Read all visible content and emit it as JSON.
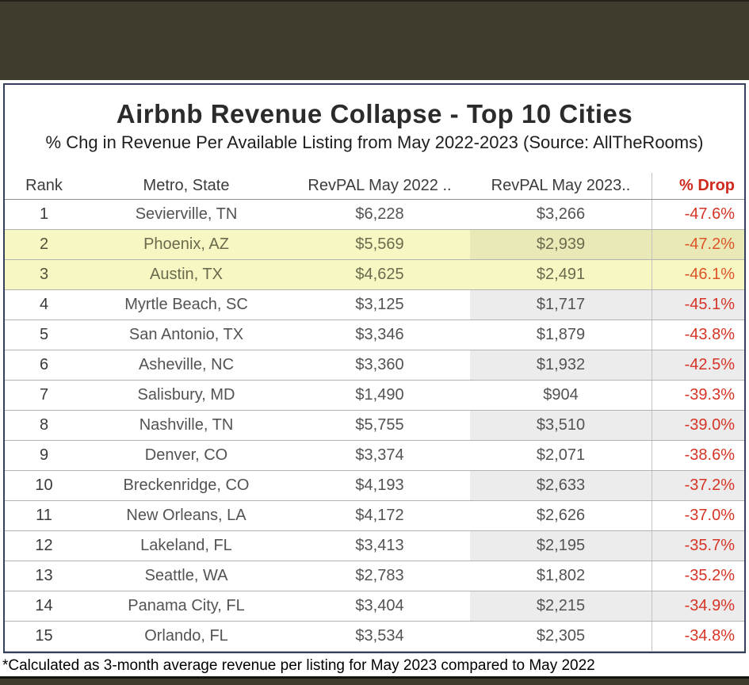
{
  "page": {
    "title": "Airbnb Revenue Collapse - Top 10 Cities",
    "subtitle": "% Chg in Revenue Per Available Listing from May 2022-2023 (Source: AllTheRooms)",
    "footnote": "*Calculated as 3-month average revenue per listing for May 2023 compared to May 2022"
  },
  "colors": {
    "frame_dark": "#3f3c2d",
    "card_border": "#35415c",
    "highlight_yellow": "#f7f7c4",
    "band_gray": "#ececec",
    "accent_red": "#d63426"
  },
  "table": {
    "columns": [
      "Rank",
      "Metro, State",
      "RevPAL May 2022 ..",
      "RevPAL May 2023..",
      "% Drop"
    ],
    "rows": [
      {
        "rank": "1",
        "metro": "Sevierville, TN",
        "rev2022": "$6,228",
        "rev2023": "$3,266",
        "drop": "-47.6%",
        "highlight": false
      },
      {
        "rank": "2",
        "metro": "Phoenix, AZ",
        "rev2022": "$5,569",
        "rev2023": "$2,939",
        "drop": "-47.2%",
        "highlight": true
      },
      {
        "rank": "3",
        "metro": "Austin, TX",
        "rev2022": "$4,625",
        "rev2023": "$2,491",
        "drop": "-46.1%",
        "highlight": true
      },
      {
        "rank": "4",
        "metro": "Myrtle Beach, SC",
        "rev2022": "$3,125",
        "rev2023": "$1,717",
        "drop": "-45.1%",
        "highlight": false
      },
      {
        "rank": "5",
        "metro": "San Antonio, TX",
        "rev2022": "$3,346",
        "rev2023": "$1,879",
        "drop": "-43.8%",
        "highlight": false
      },
      {
        "rank": "6",
        "metro": "Asheville, NC",
        "rev2022": "$3,360",
        "rev2023": "$1,932",
        "drop": "-42.5%",
        "highlight": false
      },
      {
        "rank": "7",
        "metro": "Salisbury, MD",
        "rev2022": "$1,490",
        "rev2023": "$904",
        "drop": "-39.3%",
        "highlight": false
      },
      {
        "rank": "8",
        "metro": "Nashville, TN",
        "rev2022": "$5,755",
        "rev2023": "$3,510",
        "drop": "-39.0%",
        "highlight": false
      },
      {
        "rank": "9",
        "metro": "Denver, CO",
        "rev2022": "$3,374",
        "rev2023": "$2,071",
        "drop": "-38.6%",
        "highlight": false
      },
      {
        "rank": "10",
        "metro": "Breckenridge, CO",
        "rev2022": "$4,193",
        "rev2023": "$2,633",
        "drop": "-37.2%",
        "highlight": false
      },
      {
        "rank": "11",
        "metro": "New Orleans, LA",
        "rev2022": "$4,172",
        "rev2023": "$2,626",
        "drop": "-37.0%",
        "highlight": false
      },
      {
        "rank": "12",
        "metro": "Lakeland, FL",
        "rev2022": "$3,413",
        "rev2023": "$2,195",
        "drop": "-35.7%",
        "highlight": false
      },
      {
        "rank": "13",
        "metro": "Seattle, WA",
        "rev2022": "$2,783",
        "rev2023": "$1,802",
        "drop": "-35.2%",
        "highlight": false
      },
      {
        "rank": "14",
        "metro": "Panama City, FL",
        "rev2022": "$3,404",
        "rev2023": "$2,215",
        "drop": "-34.9%",
        "highlight": false
      },
      {
        "rank": "15",
        "metro": "Orlando, FL",
        "rev2022": "$3,534",
        "rev2023": "$2,305",
        "drop": "-34.8%",
        "highlight": false
      }
    ]
  },
  "chart_data": {
    "type": "table",
    "title": "Airbnb Revenue Collapse - Top 10 Cities",
    "subtitle": "% Chg in Revenue Per Available Listing from May 2022-2023 (Source: AllTheRooms)",
    "footnote": "*Calculated as 3-month average revenue per listing for May 2023 compared to May 2022",
    "columns": [
      "Rank",
      "Metro, State",
      "RevPAL May 2022 ..",
      "RevPAL May 2023..",
      "% Drop"
    ],
    "categories": [
      "Sevierville, TN",
      "Phoenix, AZ",
      "Austin, TX",
      "Myrtle Beach, SC",
      "San Antonio, TX",
      "Asheville, NC",
      "Salisbury, MD",
      "Nashville, TN",
      "Denver, CO",
      "Breckenridge, CO",
      "New Orleans, LA",
      "Lakeland, FL",
      "Seattle, WA",
      "Panama City, FL",
      "Orlando, FL"
    ],
    "series": [
      {
        "name": "RevPAL May 2022",
        "values": [
          6228,
          5569,
          4625,
          3125,
          3346,
          3360,
          1490,
          5755,
          3374,
          4193,
          4172,
          3413,
          2783,
          3404,
          3534
        ]
      },
      {
        "name": "RevPAL May 2023",
        "values": [
          3266,
          2939,
          2491,
          1717,
          1879,
          1932,
          904,
          3510,
          2071,
          2633,
          2626,
          2195,
          1802,
          2215,
          2305
        ]
      },
      {
        "name": "% Drop",
        "values": [
          -47.6,
          -47.2,
          -46.1,
          -45.1,
          -43.8,
          -42.5,
          -39.3,
          -39.0,
          -38.6,
          -37.2,
          -37.0,
          -35.7,
          -35.2,
          -34.9,
          -34.8
        ]
      }
    ],
    "highlighted_rows": [
      "Phoenix, AZ",
      "Austin, TX"
    ],
    "layout": {
      "grid": "row-separators",
      "banded_columns": [
        "RevPAL May 2023..",
        "% Drop"
      ],
      "banding": "even-ranks"
    }
  }
}
